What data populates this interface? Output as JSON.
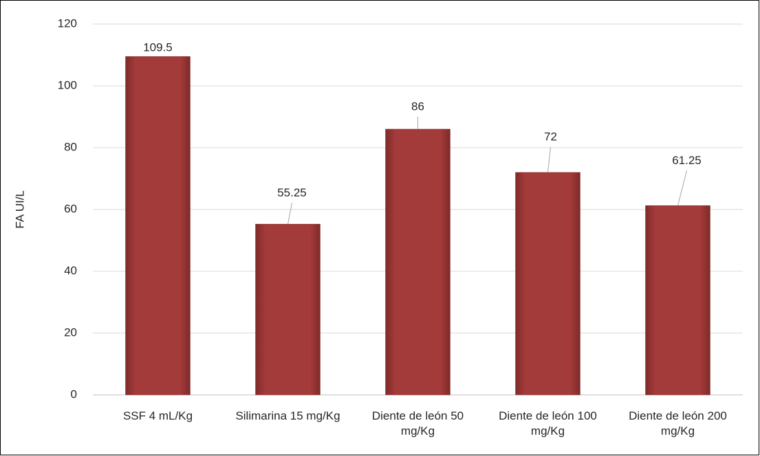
{
  "chart_data": {
    "type": "bar",
    "y_label": "FA UI/L",
    "categories": [
      "SSF 4 mL/Kg",
      "Silimarina 15 mg/Kg",
      "Diente de león 50 mg/Kg",
      "Diente de león 100 mg/Kg",
      "Diente de león 200 mg/Kg"
    ],
    "values": [
      109.5,
      55.25,
      86,
      72,
      61.25
    ],
    "color": "#a33b3a",
    "ylim": [
      0,
      120
    ],
    "yticks": [
      0,
      20,
      40,
      60,
      80,
      100,
      120
    ],
    "grid": true
  }
}
